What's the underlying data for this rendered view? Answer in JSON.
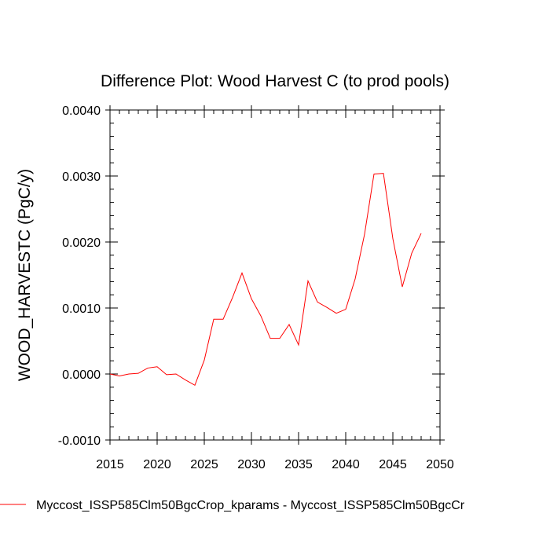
{
  "chart_data": {
    "type": "line",
    "title": "Difference Plot: Wood Harvest C (to prod pools)",
    "xlabel": "",
    "ylabel": "WOOD_HARVESTC  (PgC/y)",
    "xlim": [
      2015,
      2050
    ],
    "ylim": [
      -0.001,
      0.004
    ],
    "xticks": [
      2015,
      2020,
      2025,
      2030,
      2035,
      2040,
      2045,
      2050
    ],
    "yticks": [
      -0.001,
      0.0,
      0.001,
      0.002,
      0.003,
      0.004
    ],
    "ytick_labels": [
      "-0.0010",
      "0.0000",
      "0.0010",
      "0.0020",
      "0.0030",
      "0.0040"
    ],
    "grid": false,
    "legend_position": "bottom",
    "series": [
      {
        "name": "Myccost_ISSP585Clm50BgcCrop_kparams - Myccost_ISSP585Clm50BgcCr",
        "color": "#ff0000",
        "x": [
          2015,
          2016,
          2017,
          2018,
          2019,
          2020,
          2021,
          2022,
          2023,
          2024,
          2025,
          2026,
          2027,
          2028,
          2029,
          2030,
          2031,
          2032,
          2033,
          2034,
          2035,
          2036,
          2037,
          2038,
          2039,
          2040,
          2041,
          2042,
          2043,
          2044,
          2045,
          2046,
          2047,
          2048
        ],
        "y": [
          0.0,
          -3e-05,
          0.0,
          1e-05,
          9e-05,
          0.00011,
          -1e-05,
          0.0,
          -9e-05,
          -0.00017,
          0.00021,
          0.00083,
          0.00083,
          0.00116,
          0.00153,
          0.00114,
          0.00088,
          0.00054,
          0.00054,
          0.00075,
          0.00044,
          0.00141,
          0.00109,
          0.00101,
          0.00092,
          0.00098,
          0.00144,
          0.00212,
          0.00303,
          0.00304,
          0.00205,
          0.00132,
          0.00183,
          0.00213
        ]
      }
    ]
  }
}
